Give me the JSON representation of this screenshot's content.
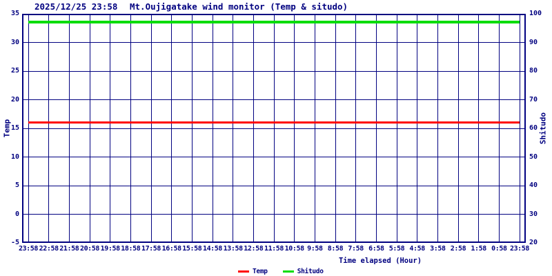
{
  "header": {
    "datetime": "2025/12/25 23:58",
    "title": "Mt.Oujigatake wind monitor (Temp & situdo)"
  },
  "colors": {
    "axis": "#000080",
    "background": "#ffffff",
    "temp_line": "#ff0000",
    "shitudo_line": "#00dd00"
  },
  "chart_data": {
    "type": "line",
    "title": "Mt.Oujigatake wind monitor (Temp & situdo)",
    "timestamp": "2025/12/25 23:58",
    "xlabel": "Time elapsed (Hour)",
    "ylabel_left": "Temp",
    "ylabel_right": "Shitudo",
    "x_ticks": [
      "23:58",
      "22:58",
      "21:58",
      "20:58",
      "19:58",
      "18:58",
      "17:58",
      "16:58",
      "15:58",
      "14:58",
      "13:58",
      "12:58",
      "11:58",
      "10:58",
      "9:58",
      "8:58",
      "7:58",
      "6:58",
      "5:58",
      "4:58",
      "3:58",
      "2:58",
      "1:58",
      "0:58",
      "23:58"
    ],
    "y_left_ticks": [
      35,
      30,
      25,
      20,
      15,
      10,
      5,
      0,
      -5
    ],
    "y_right_ticks": [
      100,
      90,
      80,
      70,
      60,
      50,
      40,
      30,
      20
    ],
    "ylim_left": [
      -5,
      35
    ],
    "ylim_right": [
      20,
      100
    ],
    "grid": true,
    "legend_position": "bottom-center",
    "series": [
      {
        "name": "Temp",
        "axis": "left",
        "color": "#ff0000",
        "line_width": 3,
        "shape": "constant",
        "value": 16.0
      },
      {
        "name": "Shitudo",
        "axis": "right",
        "color": "#00dd00",
        "line_width": 4,
        "shape": "constant",
        "value": 97.0
      }
    ]
  },
  "legend": {
    "items": [
      {
        "label": "Temp",
        "color": "#ff0000"
      },
      {
        "label": "Shitudo",
        "color": "#00dd00"
      }
    ]
  }
}
